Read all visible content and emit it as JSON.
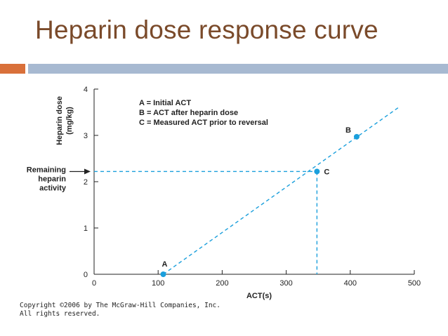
{
  "slide": {
    "title": "Heparin dose response curve",
    "footer_line1": "Copyright ©2006 by The McGraw-Hill Companies, Inc.",
    "footer_line2": "All rights reserved.",
    "colors": {
      "title": "#7a4a2a",
      "band_accent": "#d9703a",
      "band_main": "#a7b9d1",
      "series": "#1a9fdc"
    }
  },
  "chart_data": {
    "type": "line",
    "title": "",
    "xlabel": "ACT(s)",
    "ylabel": "Heparin dose (mg/kg)",
    "ylabel_line1": "Heparin dose",
    "ylabel_line2": "(mg/kg)",
    "xlim": [
      0,
      500
    ],
    "ylim": [
      0,
      4
    ],
    "xticks": [
      0,
      100,
      200,
      300,
      400,
      500
    ],
    "yticks": [
      0,
      1,
      2,
      3,
      4
    ],
    "grid": false,
    "series": [
      {
        "values": [
          [
            108,
            0
          ],
          [
            475,
            3.6
          ]
        ],
        "style": "dashed"
      }
    ],
    "points": [
      {
        "label": "A",
        "x": 108,
        "y": 0
      },
      {
        "label": "B",
        "x": 410,
        "y": 2.97
      },
      {
        "label": "C",
        "x": 348,
        "y": 2.22
      }
    ],
    "legend": {
      "placement": "top-left",
      "entries": [
        "A = Initial ACT",
        "B = ACT after heparin dose",
        "C = Measured ACT prior to reversal"
      ]
    },
    "annotation": {
      "lines": [
        "Remaining",
        "heparin",
        "activity"
      ],
      "y": 2.22,
      "x": 348
    }
  }
}
